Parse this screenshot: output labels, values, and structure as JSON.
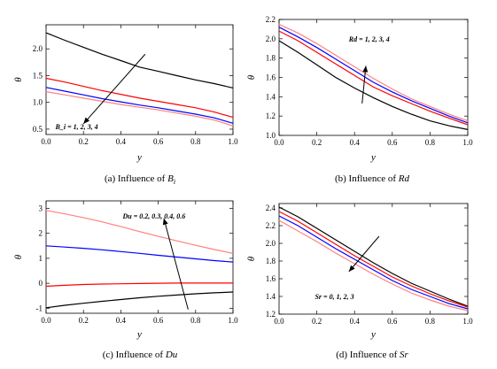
{
  "chart_data": [
    {
      "type": "line",
      "caption": "(a) Influence of B_i",
      "caption_text": "(a) Influence of ",
      "caption_sym": "B",
      "caption_sub": "i",
      "xlabel": "y",
      "ylabel": "θ",
      "xlim": [
        0,
        1
      ],
      "ylim": [
        0.4,
        2.45
      ],
      "xticks": [
        "0.0",
        "0.2",
        "0.4",
        "0.6",
        "0.8",
        "1.0"
      ],
      "yticks": [
        "0.5",
        "1.0",
        "1.5",
        "2.0"
      ],
      "annotation": "Bi = 1, 2, 3, 4",
      "annotation_display": "B_i = 1, 2, 3, 4",
      "series": [
        {
          "color": "#000000",
          "x": [
            0,
            0.1,
            0.2,
            0.3,
            0.4,
            0.5,
            0.6,
            0.7,
            0.8,
            0.9,
            1.0
          ],
          "y": [
            2.3,
            2.16,
            2.03,
            1.9,
            1.78,
            1.66,
            1.58,
            1.5,
            1.42,
            1.35,
            1.27
          ]
        },
        {
          "color": "#ff0000",
          "x": [
            0,
            0.1,
            0.2,
            0.3,
            0.4,
            0.5,
            0.6,
            0.7,
            0.8,
            0.9,
            1.0
          ],
          "y": [
            1.45,
            1.38,
            1.3,
            1.22,
            1.15,
            1.08,
            1.02,
            0.96,
            0.9,
            0.82,
            0.72
          ]
        },
        {
          "color": "#0000ff",
          "x": [
            0,
            0.1,
            0.2,
            0.3,
            0.4,
            0.5,
            0.6,
            0.7,
            0.8,
            0.9,
            1.0
          ],
          "y": [
            1.28,
            1.21,
            1.14,
            1.07,
            1.01,
            0.95,
            0.9,
            0.84,
            0.78,
            0.71,
            0.61
          ]
        },
        {
          "color": "#ff8080",
          "x": [
            0,
            0.1,
            0.2,
            0.3,
            0.4,
            0.5,
            0.6,
            0.7,
            0.8,
            0.9,
            1.0
          ],
          "y": [
            1.2,
            1.14,
            1.08,
            1.02,
            0.96,
            0.91,
            0.86,
            0.8,
            0.74,
            0.67,
            0.56
          ]
        }
      ],
      "arrow": {
        "from": [
          0.53,
          1.9
        ],
        "to": [
          0.2,
          0.6
        ]
      },
      "annotation_pos": [
        0.05,
        0.5
      ]
    },
    {
      "type": "line",
      "caption": "(b) Influence of Rd",
      "caption_text": "(b) Influence of ",
      "caption_sym": "Rd",
      "caption_sub": "",
      "xlabel": "y",
      "ylabel": "θ",
      "xlim": [
        0,
        1
      ],
      "ylim": [
        1.0,
        2.2
      ],
      "xticks": [
        "0.0",
        "0.2",
        "0.4",
        "0.6",
        "0.8",
        "1.0"
      ],
      "yticks": [
        "1.0",
        "1.2",
        "1.4",
        "1.6",
        "1.8",
        "2.0",
        "2.2"
      ],
      "annotation": "Rd = 1, 2, 3, 4",
      "annotation_display": "Rd = 1, 2, 3, 4",
      "series": [
        {
          "color": "#000000",
          "x": [
            0,
            0.1,
            0.2,
            0.3,
            0.4,
            0.5,
            0.6,
            0.7,
            0.8,
            0.9,
            1.0
          ],
          "y": [
            1.98,
            1.86,
            1.73,
            1.6,
            1.49,
            1.39,
            1.3,
            1.22,
            1.15,
            1.1,
            1.06
          ]
        },
        {
          "color": "#ff0000",
          "x": [
            0,
            0.1,
            0.2,
            0.3,
            0.4,
            0.5,
            0.6,
            0.7,
            0.8,
            0.9,
            1.0
          ],
          "y": [
            2.08,
            1.98,
            1.86,
            1.74,
            1.62,
            1.5,
            1.41,
            1.33,
            1.25,
            1.18,
            1.11
          ]
        },
        {
          "color": "#0000ff",
          "x": [
            0,
            0.1,
            0.2,
            0.3,
            0.4,
            0.5,
            0.6,
            0.7,
            0.8,
            0.9,
            1.0
          ],
          "y": [
            2.12,
            2.02,
            1.91,
            1.79,
            1.67,
            1.55,
            1.45,
            1.36,
            1.28,
            1.2,
            1.13
          ]
        },
        {
          "color": "#ff8080",
          "x": [
            0,
            0.1,
            0.2,
            0.3,
            0.4,
            0.5,
            0.6,
            0.7,
            0.8,
            0.9,
            1.0
          ],
          "y": [
            2.15,
            2.06,
            1.95,
            1.83,
            1.71,
            1.59,
            1.48,
            1.38,
            1.3,
            1.22,
            1.15
          ]
        }
      ],
      "arrow": {
        "from": [
          0.44,
          1.33
        ],
        "to": [
          0.46,
          1.72
        ]
      },
      "annotation_pos": [
        0.37,
        1.97
      ]
    },
    {
      "type": "line",
      "caption": "(c) Influence of Du",
      "caption_text": "(c) Influence of ",
      "caption_sym": "Du",
      "caption_sub": "",
      "xlabel": "y",
      "ylabel": "θ",
      "xlim": [
        0,
        1
      ],
      "ylim": [
        -1.2,
        3.3
      ],
      "xticks": [
        "0.0",
        "0.2",
        "0.4",
        "0.6",
        "0.8",
        "1.0"
      ],
      "yticks": [
        "-1",
        "0",
        "1",
        "2",
        "3"
      ],
      "annotation": "Du = 0.2, 0.3, 0.4, 0.6",
      "annotation_display": "Du = 0.2, 0.3, 0.4, 0.6",
      "series": [
        {
          "color": "#000000",
          "x": [
            0,
            0.1,
            0.2,
            0.3,
            0.4,
            0.5,
            0.6,
            0.7,
            0.8,
            0.9,
            1.0
          ],
          "y": [
            -0.98,
            -0.88,
            -0.8,
            -0.72,
            -0.65,
            -0.58,
            -0.52,
            -0.47,
            -0.42,
            -0.38,
            -0.35
          ]
        },
        {
          "color": "#ff0000",
          "x": [
            0,
            0.1,
            0.2,
            0.3,
            0.4,
            0.5,
            0.6,
            0.7,
            0.8,
            0.9,
            1.0
          ],
          "y": [
            -0.12,
            -0.08,
            -0.05,
            -0.03,
            -0.02,
            -0.01,
            0.0,
            0.01,
            0.01,
            0.01,
            0.01
          ]
        },
        {
          "color": "#0000ff",
          "x": [
            0,
            0.1,
            0.2,
            0.3,
            0.4,
            0.5,
            0.6,
            0.7,
            0.8,
            0.9,
            1.0
          ],
          "y": [
            1.5,
            1.45,
            1.4,
            1.34,
            1.27,
            1.2,
            1.12,
            1.05,
            0.98,
            0.91,
            0.85
          ]
        },
        {
          "color": "#ff8080",
          "x": [
            0,
            0.1,
            0.2,
            0.3,
            0.4,
            0.5,
            0.6,
            0.7,
            0.8,
            0.9,
            1.0
          ],
          "y": [
            2.92,
            2.78,
            2.63,
            2.46,
            2.27,
            2.07,
            1.88,
            1.7,
            1.52,
            1.35,
            1.2
          ]
        }
      ],
      "arrow": {
        "from": [
          0.76,
          -1.05
        ],
        "to": [
          0.63,
          2.6
        ]
      },
      "annotation_pos": [
        0.41,
        2.6
      ]
    },
    {
      "type": "line",
      "caption": "(d) Influence of Sr",
      "caption_text": "(d) Influence of ",
      "caption_sym": "Sr",
      "caption_sub": "",
      "xlabel": "y",
      "ylabel": "θ",
      "xlim": [
        0,
        1
      ],
      "ylim": [
        1.2,
        2.45
      ],
      "xticks": [
        "0.0",
        "0.2",
        "0.4",
        "0.6",
        "0.8",
        "1.0"
      ],
      "yticks": [
        "1.2",
        "1.4",
        "1.6",
        "1.8",
        "2.0",
        "2.2",
        "2.4"
      ],
      "annotation": "Sr = 0, 1, 2, 3",
      "annotation_display": "Sr = 0, 1, 2, 3",
      "series": [
        {
          "color": "#000000",
          "x": [
            0,
            0.1,
            0.2,
            0.3,
            0.4,
            0.5,
            0.6,
            0.7,
            0.8,
            0.9,
            1.0
          ],
          "y": [
            2.41,
            2.3,
            2.17,
            2.04,
            1.91,
            1.78,
            1.66,
            1.55,
            1.46,
            1.37,
            1.29
          ]
        },
        {
          "color": "#ff0000",
          "x": [
            0,
            0.1,
            0.2,
            0.3,
            0.4,
            0.5,
            0.6,
            0.7,
            0.8,
            0.9,
            1.0
          ],
          "y": [
            2.36,
            2.25,
            2.12,
            1.99,
            1.86,
            1.74,
            1.62,
            1.52,
            1.43,
            1.35,
            1.28
          ]
        },
        {
          "color": "#0000ff",
          "x": [
            0,
            0.1,
            0.2,
            0.3,
            0.4,
            0.5,
            0.6,
            0.7,
            0.8,
            0.9,
            1.0
          ],
          "y": [
            2.31,
            2.2,
            2.07,
            1.94,
            1.82,
            1.7,
            1.58,
            1.48,
            1.4,
            1.32,
            1.26
          ]
        },
        {
          "color": "#ff8080",
          "x": [
            0,
            0.1,
            0.2,
            0.3,
            0.4,
            0.5,
            0.6,
            0.7,
            0.8,
            0.9,
            1.0
          ],
          "y": [
            2.26,
            2.14,
            2.02,
            1.89,
            1.77,
            1.65,
            1.54,
            1.44,
            1.36,
            1.29,
            1.24
          ]
        }
      ],
      "arrow": {
        "from": [
          0.53,
          2.08
        ],
        "to": [
          0.37,
          1.68
        ]
      },
      "annotation_pos": [
        0.19,
        1.37
      ]
    }
  ]
}
